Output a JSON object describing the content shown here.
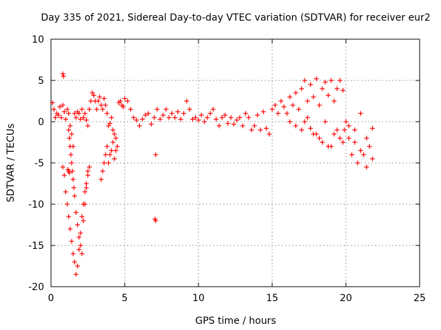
{
  "chart_data": {
    "type": "scatter",
    "title": "Day 335 of 2021, Sidereal Day-to-day VTEC variation (SDTVAR) for receiver eur2",
    "xlabel": "GPS time / hours",
    "ylabel": "SDTVAR / TECUs",
    "xlim": [
      0,
      25
    ],
    "ylim": [
      -20,
      10
    ],
    "xticks": [
      0,
      5,
      10,
      15,
      20,
      25
    ],
    "yticks": [
      -20,
      -15,
      -10,
      -5,
      0,
      5,
      10
    ],
    "grid": true,
    "marker": "plus",
    "marker_color": "#ff0000",
    "series": [
      {
        "name": "SDTVAR",
        "x": [
          0.1,
          0.2,
          0.3,
          0.4,
          0.5,
          0.6,
          0.7,
          0.8,
          0.9,
          1.0,
          1.1,
          1.2,
          1.3,
          1.4,
          1.5,
          1.6,
          1.7,
          1.8,
          1.9,
          2.0,
          2.1,
          2.2,
          2.3,
          2.4,
          2.5,
          2.6,
          2.7,
          2.8,
          2.9,
          3.0,
          3.1,
          3.2,
          3.3,
          3.4,
          3.5,
          3.6,
          3.7,
          3.8,
          3.9,
          4.0,
          4.1,
          4.2,
          4.3,
          4.4,
          4.5,
          4.6,
          4.7,
          4.8,
          4.9,
          5.0,
          5.2,
          5.4,
          5.6,
          5.8,
          6.0,
          6.2,
          6.4,
          6.6,
          6.8,
          7.0,
          7.2,
          7.4,
          7.6,
          7.8,
          8.0,
          8.2,
          8.4,
          8.6,
          8.8,
          9.0,
          9.2,
          9.4,
          9.6,
          9.8,
          10.0,
          10.2,
          10.4,
          10.6,
          10.8,
          11.0,
          11.2,
          11.4,
          11.6,
          11.8,
          12.0,
          12.2,
          12.4,
          12.6,
          12.8,
          13.0,
          13.2,
          13.4,
          13.6,
          13.8,
          14.0,
          14.2,
          14.4,
          14.6,
          14.8,
          15.0,
          15.2,
          15.4,
          15.6,
          15.8,
          16.0,
          16.2,
          16.4,
          16.6,
          16.8,
          17.0,
          17.2,
          17.4,
          17.6,
          17.8,
          18.0,
          18.2,
          18.4,
          18.6,
          18.8,
          19.0,
          19.2,
          19.4,
          19.6,
          19.8,
          20.0,
          20.2,
          20.4,
          20.6,
          20.8,
          21.0,
          21.2,
          21.4,
          21.6,
          21.8,
          0.8,
          0.9,
          1.0,
          1.1,
          1.2,
          1.3,
          1.4,
          1.5,
          1.6,
          1.7,
          1.8,
          1.9,
          2.0,
          2.1,
          2.2,
          2.3,
          2.4,
          2.5,
          2.6,
          3.4,
          3.5,
          3.6,
          3.7,
          3.8,
          3.9,
          4.0,
          4.1,
          4.2,
          4.3,
          4.4,
          1.2,
          1.25,
          1.3,
          1.35,
          1.4,
          1.45,
          1.5,
          1.55,
          1.6,
          1.7,
          1.8,
          1.9,
          2.0,
          2.1,
          2.2,
          2.3,
          2.4,
          2.5,
          0.8,
          0.85,
          1.2,
          1.25,
          1.15,
          7.1,
          7.05,
          7.1,
          16.2,
          16.6,
          17.0,
          17.4,
          17.8,
          18.2,
          18.6,
          19.0,
          19.4,
          19.8,
          20.2,
          20.6,
          21.0,
          21.4,
          21.8,
          17.2,
          17.6,
          18.0,
          18.4,
          18.8,
          19.2,
          19.6,
          19.9
        ],
        "y": [
          2.3,
          1.5,
          0.5,
          1.0,
          0.8,
          1.8,
          0.5,
          2.0,
          1.2,
          0.3,
          1.5,
          1.0,
          -0.5,
          -1.5,
          -3.0,
          1.0,
          0.5,
          1.2,
          1.0,
          0.3,
          1.5,
          0.5,
          1.0,
          0.2,
          -0.5,
          1.5,
          2.5,
          3.5,
          3.2,
          2.5,
          1.5,
          2.5,
          3.0,
          2.0,
          1.5,
          2.8,
          2.0,
          1.0,
          -0.5,
          -0.2,
          0.5,
          -1.0,
          -1.5,
          -2.0,
          -3.0,
          2.3,
          2.5,
          2.0,
          1.8,
          2.8,
          2.5,
          1.5,
          0.5,
          0.2,
          -0.5,
          0.3,
          0.8,
          1.0,
          -0.3,
          0.5,
          1.5,
          0.3,
          0.8,
          1.5,
          0.5,
          1.0,
          0.5,
          1.2,
          0.3,
          1.0,
          2.5,
          1.5,
          0.3,
          0.5,
          0.2,
          0.8,
          0.0,
          0.5,
          1.0,
          1.5,
          0.3,
          -0.5,
          0.5,
          0.8,
          -0.2,
          0.5,
          -0.3,
          0.2,
          0.5,
          -0.5,
          1.0,
          0.5,
          -1.0,
          -0.5,
          0.8,
          -1.0,
          1.2,
          -0.8,
          -1.5,
          1.5,
          2.0,
          1.0,
          2.5,
          1.8,
          1.0,
          3.0,
          2.0,
          3.5,
          1.5,
          4.0,
          5.0,
          2.5,
          4.5,
          3.0,
          5.2,
          2.0,
          4.0,
          4.8,
          3.2,
          5.0,
          2.5,
          4.0,
          5.0,
          3.8,
          0.0,
          -2.0,
          -4.0,
          -2.5,
          -5.0,
          -3.5,
          -4.0,
          -5.5,
          -3.0,
          -4.5,
          -5.5,
          -6.5,
          -8.5,
          -10.0,
          -11.5,
          -13.0,
          -14.5,
          -16.0,
          -17.0,
          -18.5,
          -17.5,
          -15.5,
          -13.5,
          -11.5,
          -10.0,
          -8.5,
          -7.5,
          -6.5,
          -5.5,
          -7.0,
          -6.0,
          -5.0,
          -4.0,
          -3.0,
          -5.0,
          -4.0,
          -3.5,
          -2.5,
          -4.5,
          -3.5,
          -1.0,
          -2.0,
          -3.0,
          -4.0,
          -5.0,
          -6.0,
          -7.0,
          -8.0,
          -9.0,
          -11.0,
          -12.5,
          -14.0,
          -15.0,
          -16.0,
          -12.0,
          -10.0,
          -8.0,
          -6.0,
          5.8,
          5.5,
          -6.0,
          -6.2,
          -5.8,
          -4.0,
          -11.8,
          -12.0,
          0.0,
          -0.5,
          -1.0,
          0.5,
          -1.5,
          -2.0,
          0.0,
          -3.0,
          -1.0,
          -2.5,
          -0.5,
          -1.0,
          1.0,
          -2.0,
          -0.8,
          0.0,
          -0.8,
          -1.5,
          -2.5,
          -3.0,
          -1.5,
          -2.0,
          -1.0
        ]
      }
    ]
  }
}
